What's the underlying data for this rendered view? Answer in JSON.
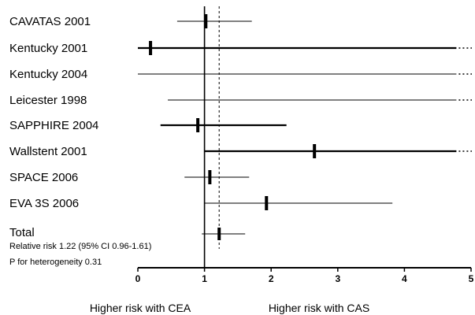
{
  "chart_data": {
    "type": "scatter",
    "x_axis": {
      "min": 0,
      "max": 5,
      "ticks": [
        0,
        1,
        2,
        3,
        4,
        5
      ],
      "reference_line": 1
    },
    "studies": [
      {
        "label": "CAVATAS 2001",
        "estimate": 1.02,
        "ci_lower": 0.59,
        "ci_upper": 1.71
      },
      {
        "label": "Kentucky 2001",
        "estimate": 0.19,
        "ci_lower": 0.0,
        "ci_upper": null,
        "ci_extends_beyond_axis": true
      },
      {
        "label": "Kentucky 2004",
        "estimate": null,
        "ci_lower": 0.0,
        "ci_upper": null,
        "ci_extends_beyond_axis": true
      },
      {
        "label": "Leicester 1998",
        "estimate": null,
        "ci_lower": 0.45,
        "ci_upper": null,
        "ci_extends_beyond_axis": true
      },
      {
        "label": "SAPPHIRE 2004",
        "estimate": 0.9,
        "ci_lower": 0.34,
        "ci_upper": 2.23
      },
      {
        "label": "Wallstent 2001",
        "estimate": 2.65,
        "ci_lower": 1.0,
        "ci_upper": null,
        "ci_extends_beyond_axis": true
      },
      {
        "label": "SPACE 2006",
        "estimate": 1.08,
        "ci_lower": 0.7,
        "ci_upper": 1.67
      },
      {
        "label": "EVA 3S 2006",
        "estimate": 1.93,
        "ci_lower": 1.0,
        "ci_upper": 3.82
      }
    ],
    "pooled": {
      "label": "Total",
      "estimate": 1.22,
      "ci_lower": 0.96,
      "ci_upper": 1.61,
      "summary_text": "Relative risk 1.22 (95% CI 0.96-1.61)",
      "heterogeneity_text": "P for heterogeneity 0.31"
    },
    "direction_labels": {
      "left": "Higher risk with CEA",
      "right": "Higher risk with CAS"
    },
    "grid": false,
    "colors": {
      "ink": "#000000",
      "background": "#ffffff"
    }
  }
}
